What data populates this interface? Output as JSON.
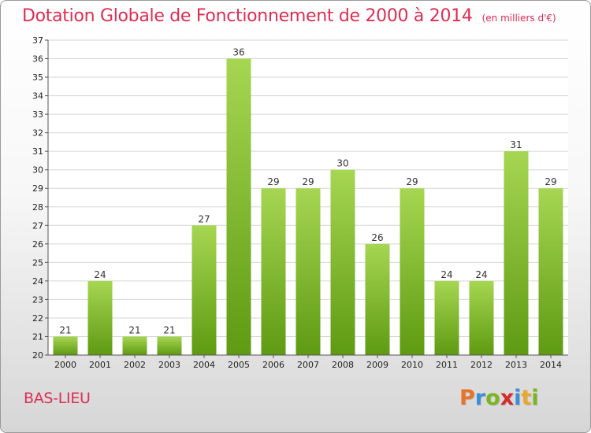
{
  "header": {
    "title": "Dotation Globale de Fonctionnement de 2000 à 2014",
    "unit": "(en milliers d'€)"
  },
  "commune": "BAS-LIEU",
  "logo": {
    "letters": [
      "P",
      "r",
      "o",
      "x",
      "i",
      "t",
      "i"
    ],
    "colors": [
      "#e8742a",
      "#3a8fd8",
      "#7ab520",
      "#d42b2b",
      "#3a8fd8",
      "#e8a82a",
      "#7ab520"
    ]
  },
  "colors": {
    "title": "#dd2e54",
    "bar_light": "#a6d652",
    "bar_dark": "#5e9a12",
    "grid": "#d6d6d6",
    "axis": "#555555"
  },
  "chart_data": {
    "type": "bar",
    "title": "Dotation Globale de Fonctionnement de 2000 à 2014",
    "subtitle": "(en milliers d'€)",
    "xlabel": "",
    "ylabel": "",
    "categories": [
      "2000",
      "2001",
      "2002",
      "2003",
      "2004",
      "2005",
      "2006",
      "2007",
      "2008",
      "2009",
      "2010",
      "2011",
      "2012",
      "2013",
      "2014"
    ],
    "values": [
      21,
      24,
      21,
      21,
      27,
      36,
      29,
      29,
      30,
      26,
      29,
      24,
      24,
      31,
      29
    ],
    "ylim": [
      20,
      37
    ],
    "yticks": [
      20,
      21,
      22,
      23,
      24,
      25,
      26,
      27,
      28,
      29,
      30,
      31,
      32,
      33,
      34,
      35,
      36,
      37
    ],
    "grid": true,
    "data_labels": true,
    "legend": "none"
  }
}
